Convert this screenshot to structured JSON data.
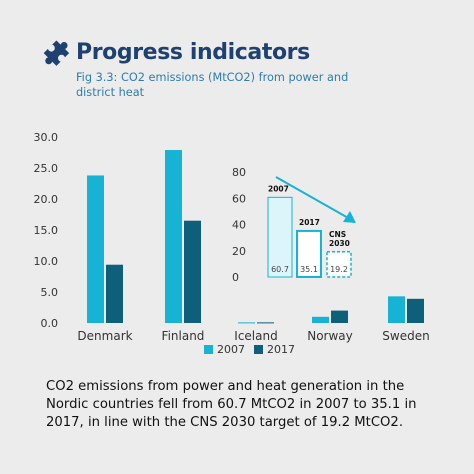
{
  "header": {
    "title": "Progress indicators",
    "subtitle": "Fig 3.3: CO2 emissions (MtCO2) from power and district heat",
    "icon": "puzzle-icon"
  },
  "colors": {
    "y2007": "#16b3d4",
    "y2017": "#0d5f7a",
    "title": "#1f4172",
    "subtitle": "#2f7da8",
    "inset_fill": "#dcf5fb"
  },
  "chart_data": [
    {
      "type": "bar",
      "categories": [
        "Denmark",
        "Finland",
        "Iceland",
        "Norway",
        "Sweden"
      ],
      "series": [
        {
          "name": "2007",
          "values": [
            23.8,
            27.9,
            0.1,
            1.0,
            4.3
          ]
        },
        {
          "name": "2017",
          "values": [
            9.4,
            16.5,
            0.1,
            2.0,
            3.9
          ]
        }
      ],
      "ylim": [
        0,
        30
      ],
      "yticks": [
        "0.0",
        "5.0",
        "10.0",
        "15.0",
        "20.0",
        "25.0",
        "30.0"
      ],
      "grid": false,
      "legend": {
        "placement": "bottom-center",
        "labels": [
          "2007",
          "2017"
        ]
      }
    },
    {
      "type": "bar",
      "categories": [
        "2007",
        "2017",
        "CNS 2030"
      ],
      "values": [
        60.7,
        35.1,
        19.2
      ],
      "data_labels": [
        "60.7",
        "35.1",
        "19.2"
      ],
      "category_labels": [
        "2007",
        "2017",
        "CNS\n2030"
      ],
      "ylim": [
        0,
        80
      ],
      "yticks": [
        "0",
        "20",
        "40",
        "60",
        "80"
      ],
      "grid": false,
      "annotation": "downward-trend-arrow"
    }
  ],
  "caption": "CO2 emissions from power and heat generation in the Nordic countries fell from 60.7 MtCO2 in 2007 to 35.1 in 2017, in line with the CNS 2030 target of 19.2 MtCO2."
}
